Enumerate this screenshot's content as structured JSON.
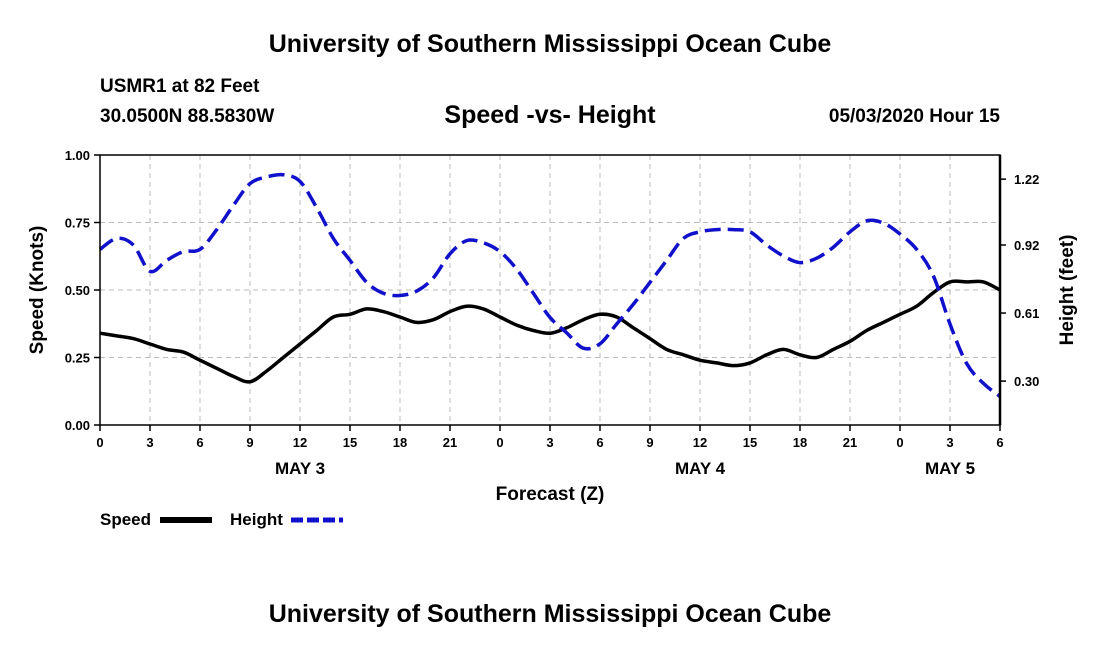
{
  "header": {
    "title": "University of Southern Mississippi Ocean Cube",
    "station": "USMR1 at 82 Feet",
    "coordinates": "30.0500N 88.5830W",
    "chart_title": "Speed -vs- Height",
    "date": "05/03/2020 Hour 15"
  },
  "footer": {
    "title": "University of Southern Mississippi Ocean Cube"
  },
  "colors": {
    "speed": "#000000",
    "height": "#1111cc",
    "grid": "#bbbbbb"
  },
  "chart_data": {
    "type": "line",
    "title": "Speed -vs- Height",
    "xlabel": "Forecast (Z)",
    "ylabel": "Speed (Knots)",
    "y2label": "Height (feet)",
    "grid": true,
    "legend_position": "bottom-left",
    "xlim": [
      0,
      54
    ],
    "ylim": [
      0,
      1.0
    ],
    "y2lim": [
      0.1,
      1.33
    ],
    "x_ticks": [
      0,
      3,
      6,
      9,
      12,
      15,
      18,
      21,
      24,
      27,
      30,
      33,
      36,
      39,
      42,
      45,
      48,
      51,
      54
    ],
    "x_tick_labels": [
      "0",
      "3",
      "6",
      "9",
      "12",
      "15",
      "18",
      "21",
      "0",
      "3",
      "6",
      "9",
      "12",
      "15",
      "18",
      "21",
      "0",
      "3",
      "6"
    ],
    "y_ticks": [
      0.0,
      0.25,
      0.5,
      0.75,
      1.0
    ],
    "y_tick_labels": [
      "0.00",
      "0.25",
      "0.50",
      "0.75",
      "1.00"
    ],
    "y2_ticks": [
      0.3,
      0.61,
      0.92,
      1.22
    ],
    "y2_tick_labels": [
      "0.30",
      "0.61",
      "0.92",
      "1.22"
    ],
    "day_labels": [
      {
        "x": 12,
        "label": "MAY 3"
      },
      {
        "x": 36,
        "label": "MAY 4"
      },
      {
        "x": 51,
        "label": "MAY 5"
      }
    ],
    "x": [
      0,
      1,
      2,
      3,
      4,
      5,
      6,
      7,
      8,
      9,
      10,
      11,
      12,
      13,
      14,
      15,
      16,
      17,
      18,
      19,
      20,
      21,
      22,
      23,
      24,
      25,
      26,
      27,
      28,
      29,
      30,
      31,
      32,
      33,
      34,
      35,
      36,
      37,
      38,
      39,
      40,
      41,
      42,
      43,
      44,
      45,
      46,
      47,
      48,
      49,
      50,
      51,
      52,
      53,
      54
    ],
    "series": [
      {
        "name": "Speed",
        "axis": "left",
        "style": "solid",
        "values": [
          0.34,
          0.33,
          0.32,
          0.3,
          0.28,
          0.27,
          0.24,
          0.21,
          0.18,
          0.16,
          0.2,
          0.25,
          0.3,
          0.35,
          0.4,
          0.41,
          0.43,
          0.42,
          0.4,
          0.38,
          0.39,
          0.42,
          0.44,
          0.43,
          0.4,
          0.37,
          0.35,
          0.34,
          0.36,
          0.39,
          0.41,
          0.4,
          0.36,
          0.32,
          0.28,
          0.26,
          0.24,
          0.23,
          0.22,
          0.23,
          0.26,
          0.28,
          0.26,
          0.25,
          0.28,
          0.31,
          0.35,
          0.38,
          0.41,
          0.44,
          0.49,
          0.53,
          0.53,
          0.53,
          0.5
        ]
      },
      {
        "name": "Height",
        "axis": "right",
        "style": "dashed",
        "values": [
          0.9,
          0.95,
          0.92,
          0.8,
          0.85,
          0.89,
          0.9,
          0.99,
          1.1,
          1.2,
          1.23,
          1.24,
          1.21,
          1.09,
          0.95,
          0.85,
          0.75,
          0.7,
          0.69,
          0.71,
          0.77,
          0.88,
          0.94,
          0.93,
          0.89,
          0.81,
          0.7,
          0.59,
          0.52,
          0.45,
          0.47,
          0.56,
          0.65,
          0.75,
          0.85,
          0.95,
          0.98,
          0.99,
          0.99,
          0.98,
          0.92,
          0.87,
          0.84,
          0.86,
          0.91,
          0.98,
          1.03,
          1.02,
          0.97,
          0.9,
          0.78,
          0.56,
          0.38,
          0.29,
          0.23
        ]
      }
    ]
  }
}
